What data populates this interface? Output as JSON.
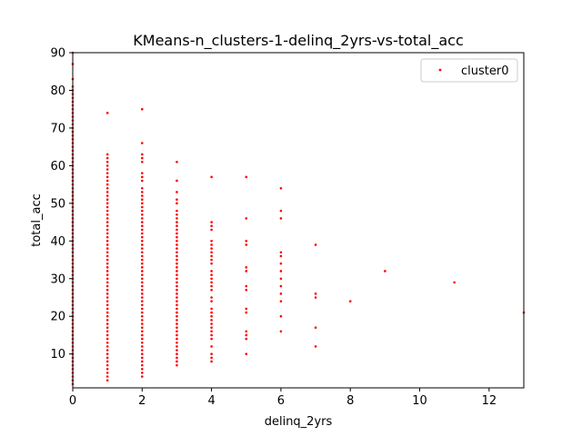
{
  "chart_data": {
    "type": "scatter",
    "title": "KMeans-n_clusters-1-delinq_2yrs-vs-total_acc",
    "xlabel": "delinq_2yrs",
    "ylabel": "total_acc",
    "xlim": [
      0,
      13
    ],
    "ylim": [
      1,
      90
    ],
    "xticks": [
      0,
      2,
      4,
      6,
      8,
      10,
      12
    ],
    "yticks": [
      10,
      20,
      30,
      40,
      50,
      60,
      70,
      80,
      90
    ],
    "xtick_labels": [
      "0",
      "2",
      "4",
      "6",
      "8",
      "10",
      "12"
    ],
    "ytick_labels": [
      "10",
      "20",
      "30",
      "40",
      "50",
      "60",
      "70",
      "80",
      "90"
    ],
    "grid": false,
    "legend_position": "top-right",
    "series": [
      {
        "name": "cluster0",
        "color": "#ff0000",
        "points": [
          [
            0,
            2
          ],
          [
            0,
            3
          ],
          [
            0,
            4
          ],
          [
            0,
            5
          ],
          [
            0,
            6
          ],
          [
            0,
            7
          ],
          [
            0,
            8
          ],
          [
            0,
            9
          ],
          [
            0,
            10
          ],
          [
            0,
            11
          ],
          [
            0,
            12
          ],
          [
            0,
            13
          ],
          [
            0,
            14
          ],
          [
            0,
            15
          ],
          [
            0,
            16
          ],
          [
            0,
            17
          ],
          [
            0,
            18
          ],
          [
            0,
            19
          ],
          [
            0,
            20
          ],
          [
            0,
            21
          ],
          [
            0,
            22
          ],
          [
            0,
            23
          ],
          [
            0,
            24
          ],
          [
            0,
            25
          ],
          [
            0,
            26
          ],
          [
            0,
            27
          ],
          [
            0,
            28
          ],
          [
            0,
            29
          ],
          [
            0,
            30
          ],
          [
            0,
            31
          ],
          [
            0,
            32
          ],
          [
            0,
            33
          ],
          [
            0,
            34
          ],
          [
            0,
            35
          ],
          [
            0,
            36
          ],
          [
            0,
            37
          ],
          [
            0,
            38
          ],
          [
            0,
            39
          ],
          [
            0,
            40
          ],
          [
            0,
            41
          ],
          [
            0,
            42
          ],
          [
            0,
            43
          ],
          [
            0,
            44
          ],
          [
            0,
            45
          ],
          [
            0,
            46
          ],
          [
            0,
            47
          ],
          [
            0,
            48
          ],
          [
            0,
            49
          ],
          [
            0,
            50
          ],
          [
            0,
            51
          ],
          [
            0,
            52
          ],
          [
            0,
            53
          ],
          [
            0,
            54
          ],
          [
            0,
            55
          ],
          [
            0,
            56
          ],
          [
            0,
            57
          ],
          [
            0,
            58
          ],
          [
            0,
            59
          ],
          [
            0,
            60
          ],
          [
            0,
            61
          ],
          [
            0,
            62
          ],
          [
            0,
            63
          ],
          [
            0,
            64
          ],
          [
            0,
            65
          ],
          [
            0,
            66
          ],
          [
            0,
            67
          ],
          [
            0,
            68
          ],
          [
            0,
            69
          ],
          [
            0,
            70
          ],
          [
            0,
            71
          ],
          [
            0,
            72
          ],
          [
            0,
            73
          ],
          [
            0,
            74
          ],
          [
            0,
            75
          ],
          [
            0,
            76
          ],
          [
            0,
            77
          ],
          [
            0,
            78
          ],
          [
            0,
            79
          ],
          [
            0,
            80
          ],
          [
            0,
            81
          ],
          [
            0,
            83
          ],
          [
            0,
            87
          ],
          [
            0,
            90
          ],
          [
            1,
            3
          ],
          [
            1,
            4
          ],
          [
            1,
            5
          ],
          [
            1,
            6
          ],
          [
            1,
            7
          ],
          [
            1,
            8
          ],
          [
            1,
            9
          ],
          [
            1,
            10
          ],
          [
            1,
            11
          ],
          [
            1,
            12
          ],
          [
            1,
            13
          ],
          [
            1,
            14
          ],
          [
            1,
            15
          ],
          [
            1,
            16
          ],
          [
            1,
            17
          ],
          [
            1,
            18
          ],
          [
            1,
            19
          ],
          [
            1,
            20
          ],
          [
            1,
            21
          ],
          [
            1,
            22
          ],
          [
            1,
            23
          ],
          [
            1,
            24
          ],
          [
            1,
            25
          ],
          [
            1,
            26
          ],
          [
            1,
            27
          ],
          [
            1,
            28
          ],
          [
            1,
            29
          ],
          [
            1,
            30
          ],
          [
            1,
            31
          ],
          [
            1,
            32
          ],
          [
            1,
            33
          ],
          [
            1,
            34
          ],
          [
            1,
            35
          ],
          [
            1,
            36
          ],
          [
            1,
            37
          ],
          [
            1,
            38
          ],
          [
            1,
            39
          ],
          [
            1,
            40
          ],
          [
            1,
            41
          ],
          [
            1,
            42
          ],
          [
            1,
            43
          ],
          [
            1,
            44
          ],
          [
            1,
            45
          ],
          [
            1,
            46
          ],
          [
            1,
            47
          ],
          [
            1,
            48
          ],
          [
            1,
            49
          ],
          [
            1,
            50
          ],
          [
            1,
            51
          ],
          [
            1,
            52
          ],
          [
            1,
            53
          ],
          [
            1,
            54
          ],
          [
            1,
            55
          ],
          [
            1,
            56
          ],
          [
            1,
            57
          ],
          [
            1,
            58
          ],
          [
            1,
            59
          ],
          [
            1,
            60
          ],
          [
            1,
            61
          ],
          [
            1,
            62
          ],
          [
            1,
            63
          ],
          [
            1,
            74
          ],
          [
            2,
            4
          ],
          [
            2,
            5
          ],
          [
            2,
            6
          ],
          [
            2,
            7
          ],
          [
            2,
            8
          ],
          [
            2,
            9
          ],
          [
            2,
            10
          ],
          [
            2,
            11
          ],
          [
            2,
            12
          ],
          [
            2,
            13
          ],
          [
            2,
            14
          ],
          [
            2,
            15
          ],
          [
            2,
            16
          ],
          [
            2,
            17
          ],
          [
            2,
            18
          ],
          [
            2,
            19
          ],
          [
            2,
            20
          ],
          [
            2,
            21
          ],
          [
            2,
            22
          ],
          [
            2,
            23
          ],
          [
            2,
            24
          ],
          [
            2,
            25
          ],
          [
            2,
            26
          ],
          [
            2,
            27
          ],
          [
            2,
            28
          ],
          [
            2,
            29
          ],
          [
            2,
            30
          ],
          [
            2,
            31
          ],
          [
            2,
            32
          ],
          [
            2,
            33
          ],
          [
            2,
            34
          ],
          [
            2,
            35
          ],
          [
            2,
            36
          ],
          [
            2,
            37
          ],
          [
            2,
            38
          ],
          [
            2,
            39
          ],
          [
            2,
            40
          ],
          [
            2,
            41
          ],
          [
            2,
            42
          ],
          [
            2,
            43
          ],
          [
            2,
            44
          ],
          [
            2,
            45
          ],
          [
            2,
            46
          ],
          [
            2,
            47
          ],
          [
            2,
            48
          ],
          [
            2,
            49
          ],
          [
            2,
            50
          ],
          [
            2,
            51
          ],
          [
            2,
            52
          ],
          [
            2,
            53
          ],
          [
            2,
            54
          ],
          [
            2,
            56
          ],
          [
            2,
            57
          ],
          [
            2,
            58
          ],
          [
            2,
            61
          ],
          [
            2,
            62
          ],
          [
            2,
            63
          ],
          [
            2,
            66
          ],
          [
            2,
            75
          ],
          [
            3,
            7
          ],
          [
            3,
            8
          ],
          [
            3,
            9
          ],
          [
            3,
            10
          ],
          [
            3,
            11
          ],
          [
            3,
            12
          ],
          [
            3,
            13
          ],
          [
            3,
            14
          ],
          [
            3,
            15
          ],
          [
            3,
            16
          ],
          [
            3,
            17
          ],
          [
            3,
            18
          ],
          [
            3,
            19
          ],
          [
            3,
            20
          ],
          [
            3,
            21
          ],
          [
            3,
            22
          ],
          [
            3,
            23
          ],
          [
            3,
            24
          ],
          [
            3,
            25
          ],
          [
            3,
            26
          ],
          [
            3,
            27
          ],
          [
            3,
            28
          ],
          [
            3,
            29
          ],
          [
            3,
            30
          ],
          [
            3,
            31
          ],
          [
            3,
            32
          ],
          [
            3,
            33
          ],
          [
            3,
            34
          ],
          [
            3,
            35
          ],
          [
            3,
            36
          ],
          [
            3,
            37
          ],
          [
            3,
            38
          ],
          [
            3,
            39
          ],
          [
            3,
            40
          ],
          [
            3,
            41
          ],
          [
            3,
            42
          ],
          [
            3,
            43
          ],
          [
            3,
            44
          ],
          [
            3,
            45
          ],
          [
            3,
            46
          ],
          [
            3,
            47
          ],
          [
            3,
            48
          ],
          [
            3,
            50
          ],
          [
            3,
            51
          ],
          [
            3,
            53
          ],
          [
            3,
            56
          ],
          [
            3,
            61
          ],
          [
            4,
            8
          ],
          [
            4,
            9
          ],
          [
            4,
            10
          ],
          [
            4,
            12
          ],
          [
            4,
            14
          ],
          [
            4,
            15
          ],
          [
            4,
            16
          ],
          [
            4,
            17
          ],
          [
            4,
            18
          ],
          [
            4,
            19
          ],
          [
            4,
            20
          ],
          [
            4,
            21
          ],
          [
            4,
            22
          ],
          [
            4,
            24
          ],
          [
            4,
            25
          ],
          [
            4,
            27
          ],
          [
            4,
            28
          ],
          [
            4,
            29
          ],
          [
            4,
            30
          ],
          [
            4,
            31
          ],
          [
            4,
            32
          ],
          [
            4,
            34
          ],
          [
            4,
            35
          ],
          [
            4,
            36
          ],
          [
            4,
            37
          ],
          [
            4,
            38
          ],
          [
            4,
            39
          ],
          [
            4,
            40
          ],
          [
            4,
            43
          ],
          [
            4,
            44
          ],
          [
            4,
            45
          ],
          [
            4,
            57
          ],
          [
            5,
            10
          ],
          [
            5,
            14
          ],
          [
            5,
            15
          ],
          [
            5,
            16
          ],
          [
            5,
            21
          ],
          [
            5,
            22
          ],
          [
            5,
            27
          ],
          [
            5,
            28
          ],
          [
            5,
            32
          ],
          [
            5,
            33
          ],
          [
            5,
            39
          ],
          [
            5,
            40
          ],
          [
            5,
            46
          ],
          [
            5,
            57
          ],
          [
            6,
            16
          ],
          [
            6,
            20
          ],
          [
            6,
            24
          ],
          [
            6,
            26
          ],
          [
            6,
            28
          ],
          [
            6,
            30
          ],
          [
            6,
            32
          ],
          [
            6,
            34
          ],
          [
            6,
            36
          ],
          [
            6,
            37
          ],
          [
            6,
            46
          ],
          [
            6,
            48
          ],
          [
            6,
            54
          ],
          [
            7,
            12
          ],
          [
            7,
            17
          ],
          [
            7,
            25
          ],
          [
            7,
            26
          ],
          [
            7,
            39
          ],
          [
            8,
            24
          ],
          [
            9,
            32
          ],
          [
            11,
            29
          ],
          [
            13,
            21
          ]
        ]
      }
    ]
  }
}
